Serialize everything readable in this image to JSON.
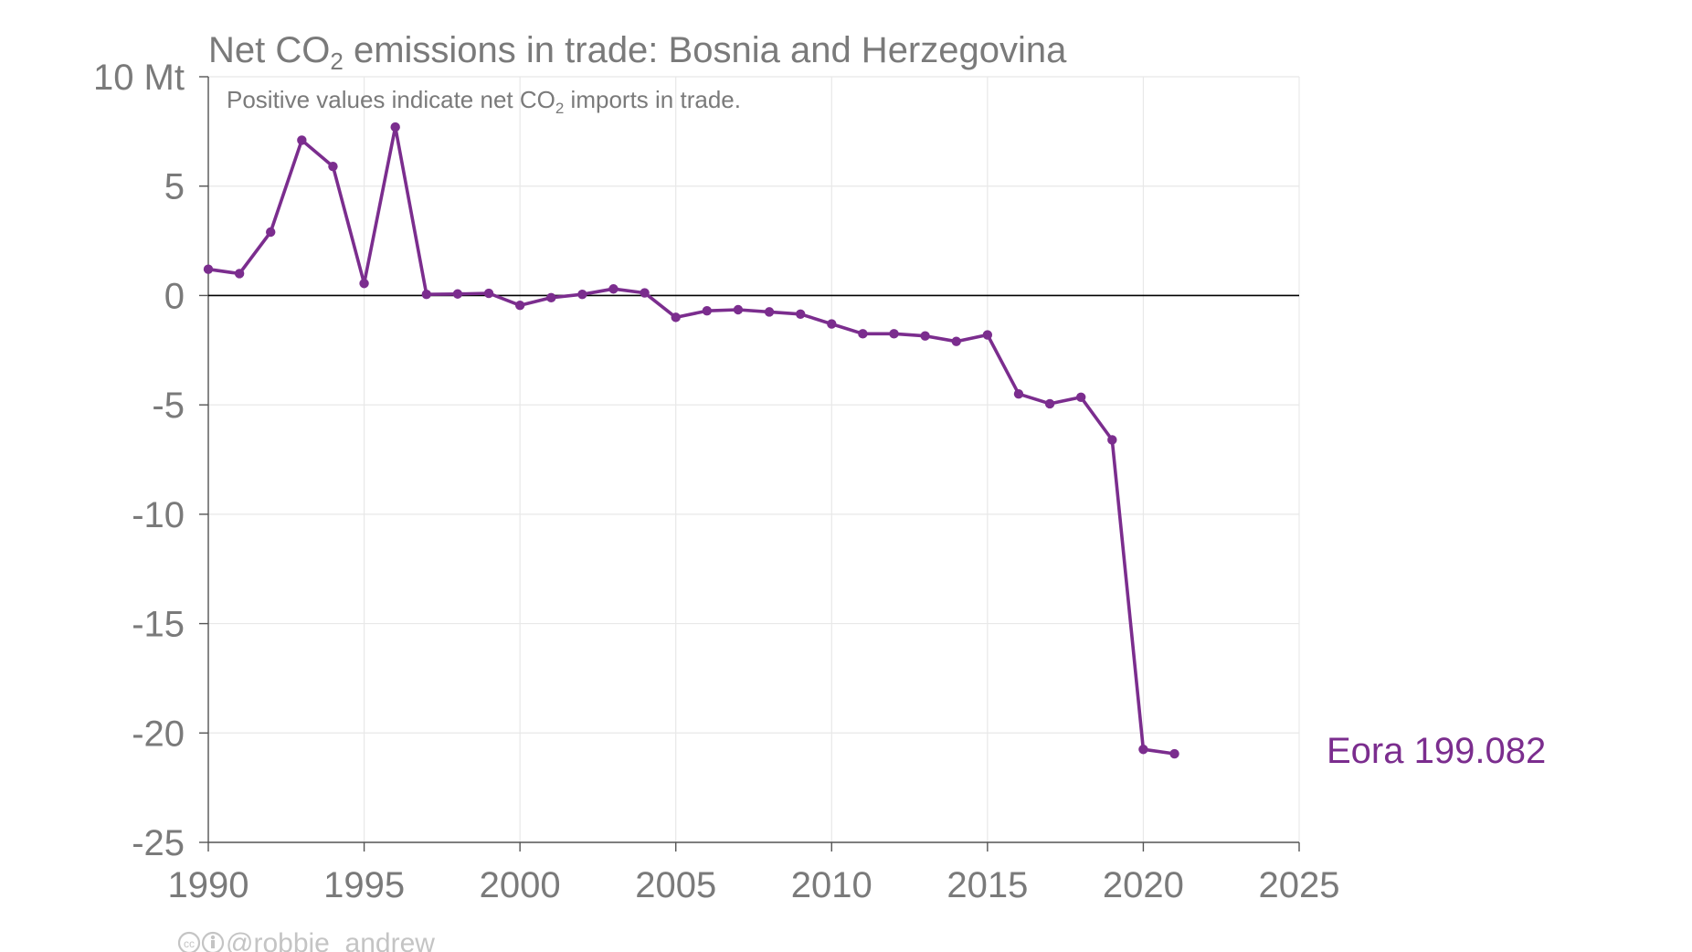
{
  "chart_data": {
    "type": "line",
    "title": "Net CO2 emissions in trade: Bosnia and Herzegovina",
    "title_parts": {
      "before": "Net CO",
      "sub": "2",
      "after": " emissions in trade: Bosnia and Herzegovina"
    },
    "subtitle": "Positive values indicate net CO2 imports in trade.",
    "subtitle_parts": {
      "before": "Positive values indicate net CO",
      "sub": "2",
      "after": " imports in trade."
    },
    "y_unit": "Mt",
    "ylim": [
      -25,
      10
    ],
    "yticks": [
      10,
      5,
      0,
      -5,
      -10,
      -15,
      -20,
      -25
    ],
    "ytick_labels": [
      "10 Mt",
      "5",
      "0",
      "-5",
      "-10",
      "-15",
      "-20",
      "-25"
    ],
    "xlim": [
      1990,
      2025
    ],
    "xticks": [
      1990,
      1995,
      2000,
      2005,
      2010,
      2015,
      2020,
      2025
    ],
    "xtick_labels": [
      "1990",
      "1995",
      "2000",
      "2005",
      "2010",
      "2015",
      "2020",
      "2025"
    ],
    "grid": true,
    "series": [
      {
        "name": "Eora 199.082",
        "color": "#7b2d8e",
        "x": [
          1990,
          1991,
          1992,
          1993,
          1994,
          1995,
          1996,
          1997,
          1998,
          1999,
          2000,
          2001,
          2002,
          2003,
          2004,
          2005,
          2006,
          2007,
          2008,
          2009,
          2010,
          2011,
          2012,
          2013,
          2014,
          2015,
          2016,
          2017,
          2018,
          2019,
          2020,
          2021
        ],
        "y": [
          1.2,
          1.0,
          2.9,
          7.1,
          5.9,
          0.55,
          7.7,
          0.05,
          0.07,
          0.1,
          -0.45,
          -0.1,
          0.05,
          0.3,
          0.12,
          -1.0,
          -0.7,
          -0.65,
          -0.75,
          -0.85,
          -1.3,
          -1.75,
          -1.75,
          -1.85,
          -2.1,
          -1.8,
          -4.5,
          -4.95,
          -4.65,
          -6.6,
          -20.75,
          -20.95
        ]
      }
    ]
  },
  "credit": {
    "icons": [
      "creative-commons-icon",
      "attribution-icon"
    ],
    "handle": "@robbie_andrew"
  }
}
